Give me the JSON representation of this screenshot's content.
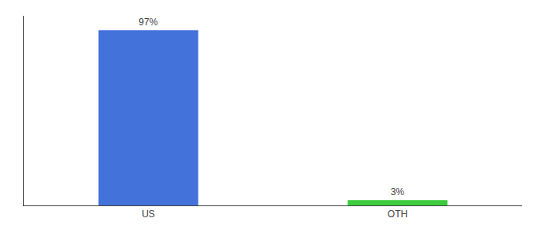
{
  "chart_data": {
    "type": "bar",
    "categories": [
      "US",
      "OTH"
    ],
    "values": [
      97,
      3
    ],
    "value_labels": [
      "97%",
      "3%"
    ],
    "colors": [
      "#4472db",
      "#3dcc3d"
    ],
    "ylim": [
      0,
      105
    ],
    "yticks": [],
    "grid": false,
    "data_labels": true,
    "tick_labels": "x"
  }
}
